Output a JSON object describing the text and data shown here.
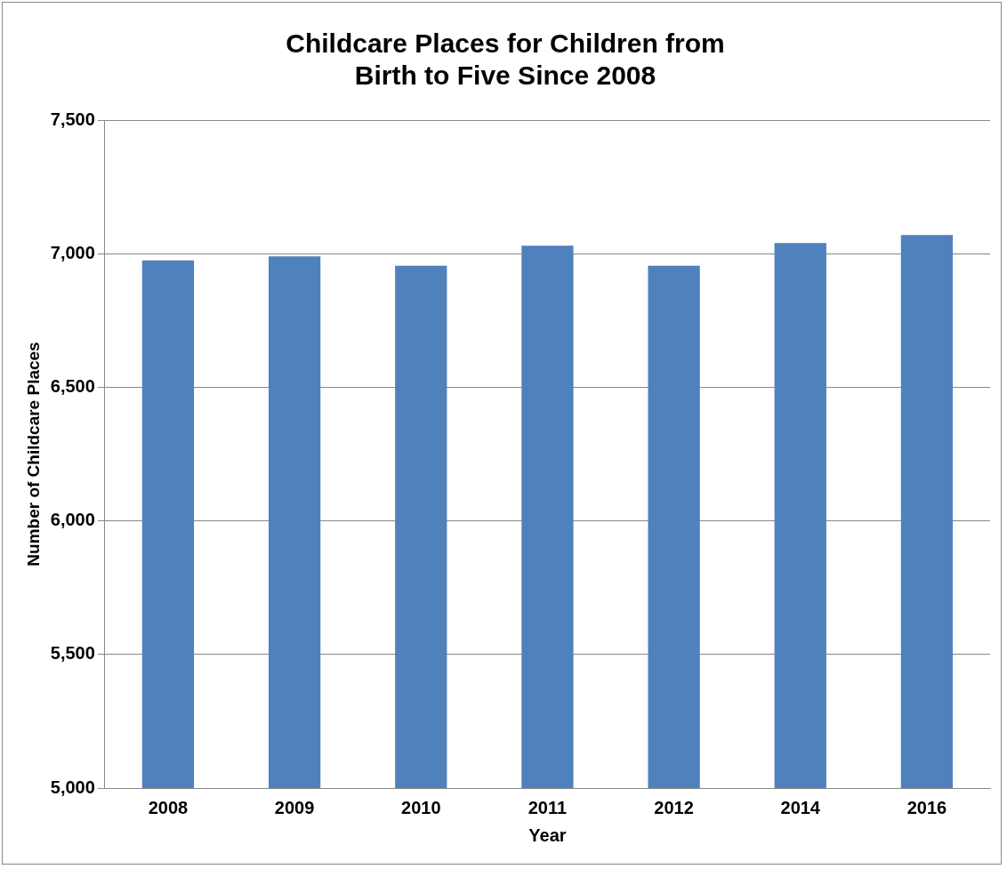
{
  "chart_data": {
    "type": "bar",
    "title": "Childcare Places for Children from\nBirth to Five Since 2008",
    "xlabel": "Year",
    "ylabel": "Number of Childcare Places",
    "categories": [
      "2008",
      "2009",
      "2010",
      "2011",
      "2012",
      "2014",
      "2016"
    ],
    "values": [
      6975,
      6990,
      6955,
      7030,
      6955,
      7040,
      7070
    ],
    "color": "#4f81bd",
    "ylim": [
      5000,
      7500
    ],
    "yticks": [
      {
        "value": 5000,
        "label": "5,000"
      },
      {
        "value": 5500,
        "label": "5,500"
      },
      {
        "value": 6000,
        "label": "6,000"
      },
      {
        "value": 6500,
        "label": "6,500"
      },
      {
        "value": 7000,
        "label": "7,000"
      },
      {
        "value": 7500,
        "label": "7,500"
      }
    ],
    "grid": "y",
    "legend": false
  }
}
